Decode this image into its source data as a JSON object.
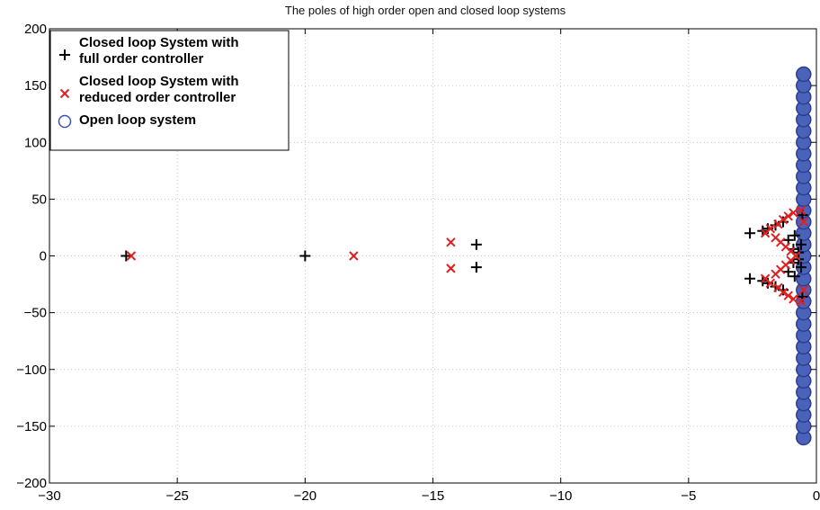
{
  "chart_data": {
    "type": "scatter",
    "title": "The poles of high order open and closed loop systems",
    "xlabel": "",
    "ylabel": "",
    "xlim": [
      -30,
      0
    ],
    "ylim": [
      -200,
      200
    ],
    "xticks": [
      -30,
      -25,
      -20,
      -15,
      -10,
      -5,
      0
    ],
    "yticks": [
      -200,
      -150,
      -100,
      -50,
      0,
      50,
      100,
      150,
      200
    ],
    "xtick_labels": [
      "−30",
      "−25",
      "−20",
      "−15",
      "−10",
      "−5",
      "0"
    ],
    "ytick_labels": [
      "−200",
      "−150",
      "−100",
      "−50",
      "0",
      "50",
      "100",
      "150",
      "200"
    ],
    "grid": true,
    "legend_position": "top-left",
    "series": [
      {
        "name": "Closed loop System with full order controller",
        "marker": "plus",
        "color": "#000000",
        "points": [
          [
            -27.0,
            0
          ],
          [
            -20.0,
            0
          ],
          [
            -13.3,
            10
          ],
          [
            -13.3,
            -10
          ],
          [
            -2.6,
            20
          ],
          [
            -2.6,
            -20
          ],
          [
            -2.1,
            22
          ],
          [
            -2.1,
            -22
          ],
          [
            -1.9,
            24
          ],
          [
            -1.9,
            -24
          ],
          [
            -1.6,
            27
          ],
          [
            -1.6,
            -27
          ],
          [
            -1.3,
            30
          ],
          [
            -1.3,
            -30
          ],
          [
            -1.1,
            14
          ],
          [
            -1.1,
            -14
          ],
          [
            -0.9,
            6
          ],
          [
            -0.9,
            -6
          ],
          [
            -0.85,
            18
          ],
          [
            -0.85,
            -18
          ],
          [
            -0.7,
            3
          ],
          [
            -0.7,
            -3
          ],
          [
            -0.6,
            10
          ],
          [
            -0.6,
            -10
          ],
          [
            -0.55,
            36
          ],
          [
            -0.55,
            -36
          ],
          [
            0.3,
            0
          ]
        ]
      },
      {
        "name": "Closed loop System with reduced order controller",
        "marker": "x",
        "color": "#e02020",
        "points": [
          [
            -26.8,
            0
          ],
          [
            -18.1,
            0
          ],
          [
            -14.3,
            12
          ],
          [
            -14.3,
            -11
          ],
          [
            -2.0,
            20
          ],
          [
            -2.0,
            -20
          ],
          [
            -1.8,
            24
          ],
          [
            -1.8,
            -24
          ],
          [
            -1.6,
            16
          ],
          [
            -1.6,
            -16
          ],
          [
            -1.5,
            28
          ],
          [
            -1.5,
            -28
          ],
          [
            -1.4,
            12
          ],
          [
            -1.4,
            -12
          ],
          [
            -1.3,
            32
          ],
          [
            -1.3,
            -32
          ],
          [
            -1.2,
            8
          ],
          [
            -1.2,
            -8
          ],
          [
            -1.1,
            35
          ],
          [
            -1.1,
            -35
          ],
          [
            -1.0,
            4
          ],
          [
            -1.0,
            -4
          ],
          [
            -0.9,
            38
          ],
          [
            -0.9,
            -38
          ],
          [
            -0.8,
            0
          ],
          [
            -0.6,
            40
          ],
          [
            -0.6,
            -40
          ],
          [
            -0.5,
            30
          ],
          [
            -0.5,
            -30
          ]
        ]
      },
      {
        "name": "Open loop system",
        "marker": "circle",
        "color": "#2a3d96",
        "points": [
          [
            -0.5,
            -160
          ],
          [
            -0.5,
            -150
          ],
          [
            -0.5,
            -140
          ],
          [
            -0.5,
            -130
          ],
          [
            -0.5,
            -120
          ],
          [
            -0.5,
            -110
          ],
          [
            -0.5,
            -100
          ],
          [
            -0.5,
            -90
          ],
          [
            -0.5,
            -80
          ],
          [
            -0.5,
            -70
          ],
          [
            -0.5,
            -60
          ],
          [
            -0.5,
            -50
          ],
          [
            -0.5,
            -40
          ],
          [
            -0.5,
            -30
          ],
          [
            -0.5,
            -20
          ],
          [
            -0.5,
            -10
          ],
          [
            -0.5,
            0
          ],
          [
            -0.5,
            10
          ],
          [
            -0.5,
            20
          ],
          [
            -0.5,
            30
          ],
          [
            -0.5,
            40
          ],
          [
            -0.5,
            50
          ],
          [
            -0.5,
            60
          ],
          [
            -0.5,
            70
          ],
          [
            -0.5,
            80
          ],
          [
            -0.5,
            90
          ],
          [
            -0.5,
            100
          ],
          [
            -0.5,
            110
          ],
          [
            -0.5,
            120
          ],
          [
            -0.5,
            130
          ],
          [
            -0.5,
            140
          ],
          [
            -0.5,
            150
          ],
          [
            -0.5,
            160
          ]
        ]
      }
    ],
    "legend": [
      {
        "marker": "plus",
        "lines": [
          "Closed loop System with",
          "full order controller"
        ]
      },
      {
        "marker": "x",
        "lines": [
          "Closed loop System with",
          "reduced order controller"
        ]
      },
      {
        "marker": "circle",
        "lines": [
          "Open loop system"
        ]
      }
    ]
  }
}
